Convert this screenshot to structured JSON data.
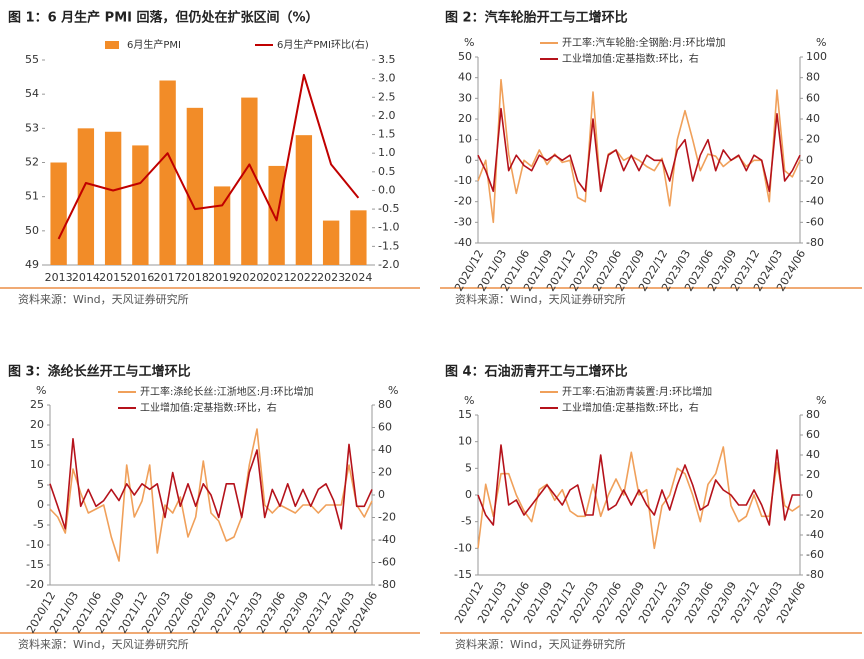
{
  "chart_data": [
    {
      "type": "combo",
      "title": "图 1：6 月生产 PMI 回落，但仍处在扩张区间（%）",
      "source": "资料来源：Wind，天风证券研究所",
      "categories": [
        "2013",
        "2014",
        "2015",
        "2016",
        "2017",
        "2018",
        "2019",
        "2020",
        "2021",
        "2022",
        "2023",
        "2024"
      ],
      "series": [
        {
          "name": "6月生产PMI",
          "type": "bar",
          "color": "#f28c28",
          "values": [
            52.0,
            53.0,
            52.9,
            52.5,
            54.4,
            53.6,
            51.3,
            53.9,
            51.9,
            52.8,
            50.3,
            50.6
          ]
        },
        {
          "name": "6月生产PMI环比(右)",
          "type": "line",
          "axis": "y2",
          "color": "#c00000",
          "values": [
            -1.3,
            0.2,
            0.0,
            0.2,
            1.0,
            -0.5,
            -0.4,
            0.7,
            -0.8,
            3.1,
            0.7,
            -0.2
          ]
        }
      ],
      "ylim": [
        49,
        55
      ],
      "yticks": [
        49,
        50,
        51,
        52,
        53,
        54,
        55
      ],
      "y2lim": [
        -2,
        3.5
      ],
      "y2ticks": [
        {
          "value": -2,
          "label": "-2.0"
        },
        -1.5,
        {
          "value": -1,
          "label": "-1.0"
        },
        -0.5,
        {
          "value": 0,
          "label": "0.0"
        },
        0.5,
        {
          "value": 1,
          "label": "1.0"
        },
        1.5,
        {
          "value": 2,
          "label": "2.0"
        },
        2.5,
        {
          "value": 3,
          "label": "3.0"
        },
        3.5
      ],
      "legend": "top"
    },
    {
      "type": "line",
      "title": "图 2：汽车轮胎开工与工增环比",
      "source": "资料来源：Wind，天风证券研究所",
      "y_unit": "%",
      "y2_unit": "%",
      "categories": [
        "2020/12",
        null,
        null,
        "2021/03",
        null,
        null,
        "2021/06",
        null,
        null,
        "2021/09",
        null,
        null,
        "2021/12",
        null,
        null,
        "2022/03",
        null,
        null,
        "2022/06",
        null,
        null,
        "2022/09",
        null,
        null,
        "2022/12",
        null,
        null,
        "2023/03",
        null,
        null,
        "2023/06",
        null,
        null,
        "2023/09",
        null,
        null,
        "2023/12",
        null,
        null,
        "2024/03",
        null,
        null,
        "2024/06"
      ],
      "series": [
        {
          "name": "开工率:汽车轮胎:全钢胎:月:环比增加",
          "color": "#f0a05a",
          "values": [
            -10,
            0,
            -30,
            39,
            3,
            -16,
            0,
            -3,
            5,
            -2,
            3,
            -1,
            0,
            -18,
            -20,
            33,
            -15,
            3,
            5,
            0,
            2,
            0,
            -3,
            -5,
            1,
            -22,
            10,
            24,
            10,
            -5,
            3,
            2,
            -3,
            0,
            2,
            -3,
            0,
            0,
            -20,
            34,
            -5,
            -8,
            0
          ]
        },
        {
          "name": "工业增加值:定基指数:环比，右",
          "axis": "y2",
          "color": "#b5121b",
          "values": [
            5,
            -10,
            -30,
            50,
            -10,
            5,
            -5,
            -10,
            5,
            0,
            5,
            0,
            5,
            -20,
            -30,
            40,
            -30,
            5,
            10,
            -10,
            5,
            -10,
            5,
            0,
            0,
            -20,
            10,
            20,
            -20,
            5,
            20,
            -10,
            10,
            0,
            5,
            -10,
            5,
            0,
            -30,
            45,
            -20,
            -10,
            5
          ]
        }
      ],
      "ylim": [
        -40,
        50
      ],
      "yticks": [
        -40,
        -30,
        -20,
        -10,
        0,
        10,
        20,
        30,
        40,
        50
      ],
      "y2lim": [
        -80,
        100
      ],
      "y2ticks": [
        -80,
        -60,
        -40,
        -20,
        0,
        20,
        40,
        60,
        80,
        100
      ],
      "legend": "top"
    },
    {
      "type": "line",
      "title": "图 3：涤纶长丝开工与工增环比",
      "source": "资料来源：Wind，天风证券研究所",
      "y_unit": "%",
      "y2_unit": "%",
      "categories": [
        "2020/12",
        null,
        null,
        "2021/03",
        null,
        null,
        "2021/06",
        null,
        null,
        "2021/09",
        null,
        null,
        "2021/12",
        null,
        null,
        "2022/03",
        null,
        null,
        "2022/06",
        null,
        null,
        "2022/09",
        null,
        null,
        "2022/12",
        null,
        null,
        "2023/03",
        null,
        null,
        "2023/06",
        null,
        null,
        "2023/09",
        null,
        null,
        "2023/12",
        null,
        null,
        "2024/03",
        null,
        null,
        "2024/06"
      ],
      "series": [
        {
          "name": "开工率:涤纶长丝:江浙地区:月:环比增加",
          "color": "#f0a05a",
          "values": [
            -1,
            -3,
            -7,
            9,
            3,
            -2,
            -1,
            0,
            -8,
            -14,
            10,
            -3,
            1,
            10,
            -12,
            0,
            -2,
            2,
            -8,
            -3,
            11,
            -2,
            -4,
            -9,
            -8,
            -3,
            10,
            19,
            0,
            -2,
            0,
            -1,
            -2,
            0,
            0,
            -2,
            0,
            0,
            0,
            10,
            0,
            -3,
            1
          ]
        },
        {
          "name": "工业增加值:定基指数:环比，右",
          "axis": "y2",
          "color": "#b5121b",
          "values": [
            10,
            -10,
            -30,
            50,
            -10,
            5,
            -10,
            -5,
            5,
            -5,
            10,
            0,
            10,
            5,
            10,
            -20,
            20,
            -10,
            10,
            -10,
            10,
            0,
            -20,
            10,
            10,
            -20,
            20,
            40,
            -20,
            5,
            -10,
            10,
            -10,
            5,
            -10,
            5,
            10,
            -5,
            -30,
            45,
            -10,
            -10,
            5
          ]
        }
      ],
      "ylim": [
        -20,
        25
      ],
      "yticks": [
        -20,
        -15,
        -10,
        -5,
        0,
        5,
        10,
        15,
        20,
        25
      ],
      "y2lim": [
        -80,
        80
      ],
      "y2ticks": [
        -80,
        -60,
        -40,
        -20,
        0,
        20,
        40,
        60,
        80
      ],
      "legend": "top"
    },
    {
      "type": "line",
      "title": "图 4：石油沥青开工与工增环比",
      "source": "资料来源：Wind，天风证券研究所",
      "y_unit": "%",
      "y2_unit": "%",
      "categories": [
        "2020/12",
        null,
        null,
        "2021/03",
        null,
        null,
        "2021/06",
        null,
        null,
        "2021/09",
        null,
        null,
        "2021/12",
        null,
        null,
        "2022/03",
        null,
        null,
        "2022/06",
        null,
        null,
        "2022/09",
        null,
        null,
        "2022/12",
        null,
        null,
        "2023/03",
        null,
        null,
        "2023/06",
        null,
        null,
        "2023/09",
        null,
        null,
        "2023/12",
        null,
        null,
        "2024/03",
        null,
        null,
        "2024/06"
      ],
      "series": [
        {
          "name": "开工率:石油沥青装置:月:环比增加",
          "color": "#f0a05a",
          "values": [
            -10,
            2,
            -4,
            4,
            4,
            0,
            -3,
            -5,
            1,
            2,
            -1,
            1,
            -3,
            -4,
            -4,
            2,
            -4,
            0,
            3,
            0,
            8,
            0,
            1,
            -10,
            -2,
            0,
            5,
            4,
            0,
            -5,
            2,
            4,
            9,
            -2,
            -5,
            -4,
            0,
            -4,
            -4,
            6,
            -2,
            -3,
            -2
          ]
        },
        {
          "name": "工业增加值:定基指数:环比，右",
          "axis": "y2",
          "color": "#b5121b",
          "values": [
            0,
            -20,
            -30,
            50,
            -10,
            -5,
            -20,
            -10,
            0,
            10,
            0,
            -10,
            5,
            10,
            -20,
            -20,
            40,
            -15,
            -10,
            5,
            -10,
            5,
            -10,
            -20,
            5,
            -15,
            10,
            30,
            10,
            -15,
            -10,
            15,
            5,
            0,
            -10,
            -10,
            5,
            -10,
            -30,
            45,
            -25,
            0,
            0
          ]
        }
      ],
      "ylim": [
        -15,
        15
      ],
      "yticks": [
        -15,
        -10,
        -5,
        0,
        5,
        10,
        15
      ],
      "y2lim": [
        -80,
        80
      ],
      "y2ticks": [
        -80,
        -60,
        -40,
        -20,
        0,
        20,
        40,
        60,
        80
      ],
      "legend": "top"
    }
  ]
}
